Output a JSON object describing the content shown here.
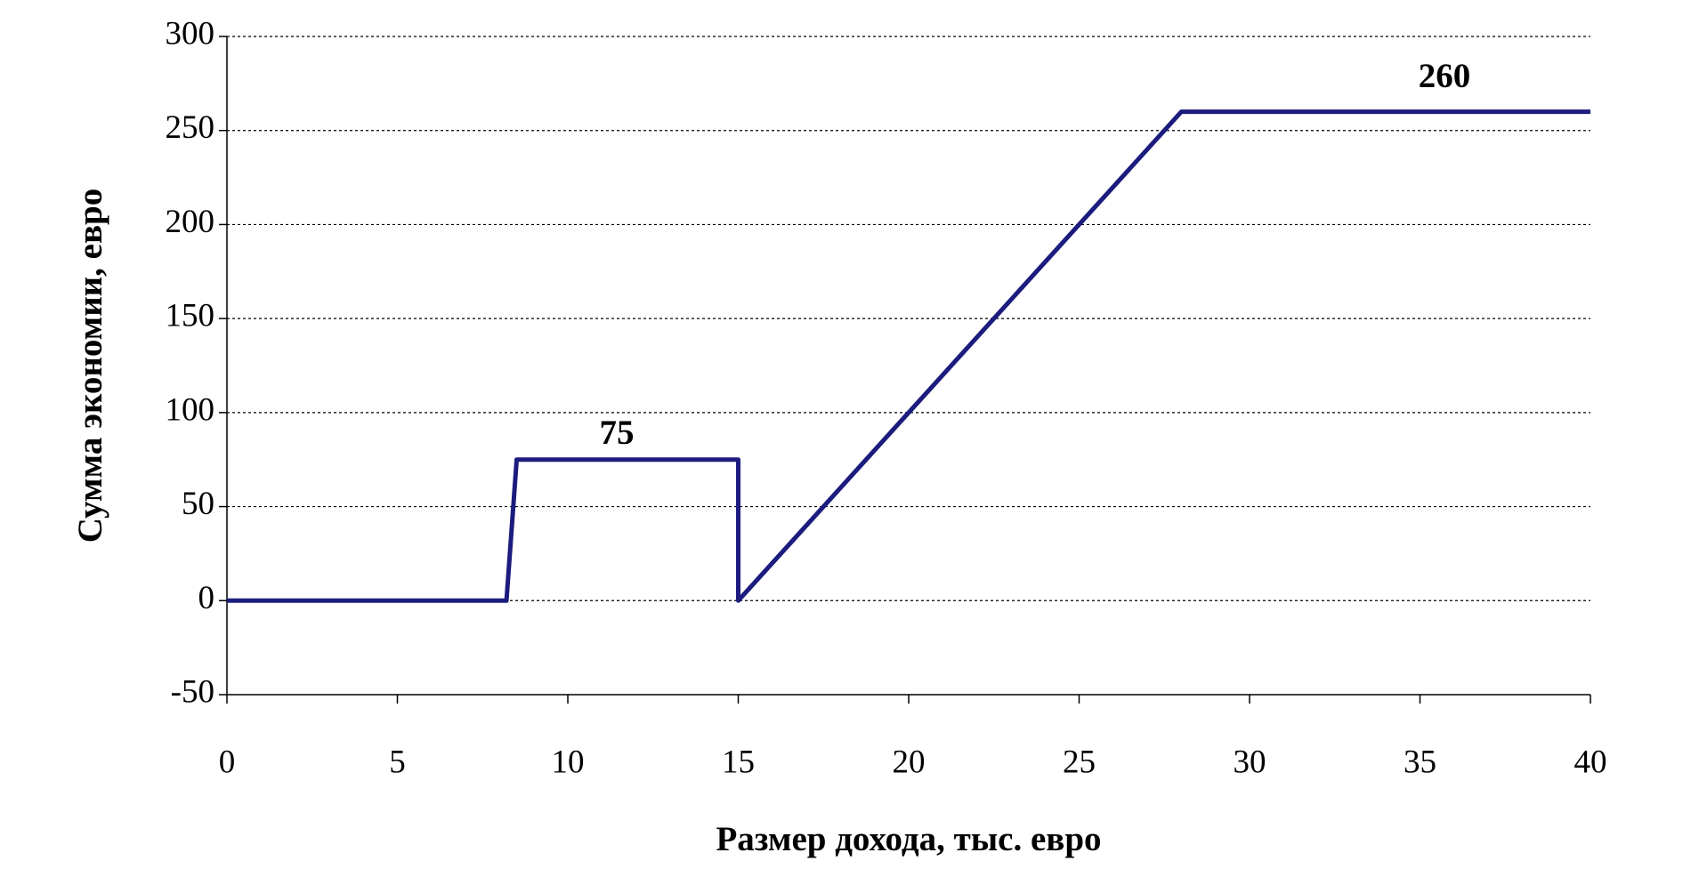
{
  "chart_data": {
    "type": "line",
    "x_label": "Размер дохода, тыс. евро",
    "y_label": "Сумма экономии, евро",
    "x": [
      0,
      8.2,
      8.5,
      15,
      15,
      28,
      40
    ],
    "series": [
      {
        "color": "#1c1c7e",
        "values": [
          0,
          0,
          75,
          75,
          0,
          260,
          260
        ]
      }
    ],
    "annotations": [
      "75",
      "260"
    ],
    "xlim": [
      0,
      40
    ],
    "xticks": [
      0,
      5,
      10,
      15,
      20,
      25,
      30,
      35,
      40
    ],
    "ylim": [
      -50,
      300
    ],
    "yticks": [
      -50,
      0,
      50,
      100,
      150,
      200,
      250,
      300
    ],
    "grid": true
  }
}
